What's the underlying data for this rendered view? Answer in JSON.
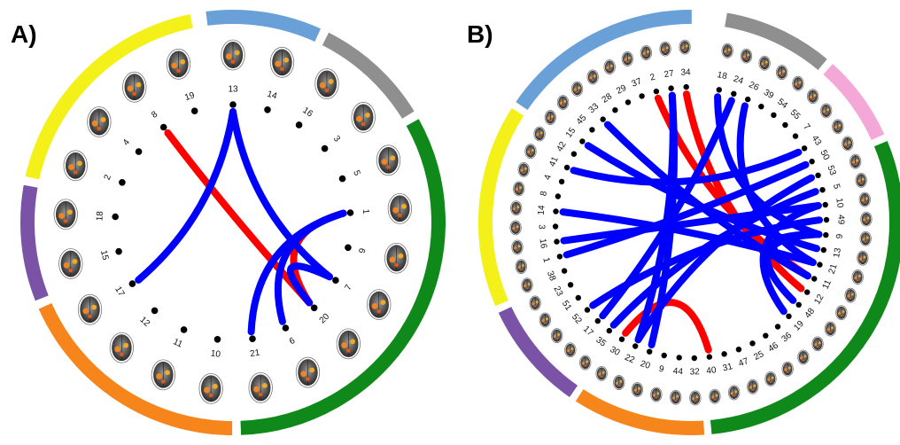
{
  "colors": {
    "yellow": "#f3f01a",
    "blue": "#6aa0d8",
    "gray": "#8f8f8f",
    "green": "#0f8a1a",
    "orange": "#f6861b",
    "purple": "#7a52a6",
    "pink": "#f4a8d8",
    "edge_positive": "#ff0000",
    "edge_negative": "#0000ff",
    "node": "#000000"
  },
  "panels": [
    {
      "id": "A",
      "label": "A)",
      "nodes": [
        "13",
        "14",
        "16",
        "3",
        "5",
        "1",
        "9",
        "7",
        "20",
        "6",
        "21",
        "10",
        "11",
        "12",
        "17",
        "15",
        "18",
        "2",
        "4",
        "8",
        "19"
      ],
      "sectors": [
        {
          "color": "blue",
          "from_node": "13",
          "to_node": "14"
        },
        {
          "color": "gray",
          "from_node": "16",
          "to_node": "3"
        },
        {
          "color": "green",
          "from_node": "5",
          "to_node": "21"
        },
        {
          "color": "orange",
          "from_node": "10",
          "to_node": "17"
        },
        {
          "color": "purple",
          "from_node": "15",
          "to_node": "18"
        },
        {
          "color": "yellow",
          "from_node": "2",
          "to_node": "19"
        }
      ],
      "edges": [
        {
          "from": "8",
          "to": "20",
          "sign": "positive"
        },
        {
          "from": "1",
          "to": "20",
          "sign": "positive"
        },
        {
          "from": "13",
          "to": "17",
          "sign": "negative"
        },
        {
          "from": "13",
          "to": "7",
          "sign": "negative"
        },
        {
          "from": "1",
          "to": "21",
          "sign": "negative"
        },
        {
          "from": "1",
          "to": "6",
          "sign": "negative"
        },
        {
          "from": "7",
          "to": "20",
          "sign": "negative"
        }
      ]
    },
    {
      "id": "B",
      "label": "B)",
      "nodes": [
        "18",
        "24",
        "26",
        "39",
        "54",
        "55",
        "7",
        "43",
        "50",
        "53",
        "5",
        "10",
        "49",
        "9",
        "13",
        "21",
        "11",
        "12",
        "48",
        "19",
        "36",
        "46",
        "25",
        "47",
        "31",
        "40",
        "32",
        "44",
        "9",
        "20",
        "22",
        "30",
        "35",
        "17",
        "52",
        "51",
        "23",
        "38",
        "1",
        "16",
        "3",
        "14",
        "8",
        "4",
        "41",
        "42",
        "15",
        "45",
        "33",
        "28",
        "29",
        "37",
        "2",
        "27",
        "34"
      ],
      "sectors": [
        {
          "color": "gray",
          "from_node": "18",
          "to_node": "54"
        },
        {
          "color": "pink",
          "from_node": "55",
          "to_node": "50"
        },
        {
          "color": "green",
          "from_node": "53",
          "to_node": "40"
        },
        {
          "color": "orange",
          "from_node": "32",
          "to_node": "30"
        },
        {
          "color": "purple",
          "from_node": "35",
          "to_node": "23"
        },
        {
          "color": "yellow",
          "from_node": "38",
          "to_node": "42"
        },
        {
          "color": "blue",
          "from_node": "15",
          "to_node": "34"
        }
      ],
      "edges": [
        {
          "from": "2",
          "to": "11",
          "sign": "positive"
        },
        {
          "from": "34",
          "to": "12",
          "sign": "positive"
        },
        {
          "from": "30",
          "to": "40",
          "sign": "positive"
        },
        {
          "from": "27",
          "to": "22",
          "sign": "negative"
        },
        {
          "from": "27",
          "to": "20",
          "sign": "negative"
        },
        {
          "from": "18",
          "to": "9",
          "sign": "negative"
        },
        {
          "from": "24",
          "to": "17",
          "sign": "negative"
        },
        {
          "from": "26",
          "to": "21",
          "sign": "negative"
        },
        {
          "from": "33",
          "to": "11",
          "sign": "negative"
        },
        {
          "from": "15",
          "to": "13",
          "sign": "negative"
        },
        {
          "from": "41",
          "to": "43",
          "sign": "negative"
        },
        {
          "from": "14",
          "to": "21",
          "sign": "negative"
        },
        {
          "from": "1",
          "to": "50",
          "sign": "negative"
        },
        {
          "from": "16",
          "to": "10",
          "sign": "negative"
        },
        {
          "from": "5",
          "to": "35",
          "sign": "negative"
        },
        {
          "from": "49",
          "to": "52",
          "sign": "negative"
        },
        {
          "from": "10",
          "to": "19",
          "sign": "negative"
        },
        {
          "from": "9",
          "to": "11",
          "sign": "negative"
        },
        {
          "from": "53",
          "to": "22",
          "sign": "negative"
        },
        {
          "from": "48",
          "to": "9",
          "sign": "negative"
        }
      ]
    }
  ]
}
